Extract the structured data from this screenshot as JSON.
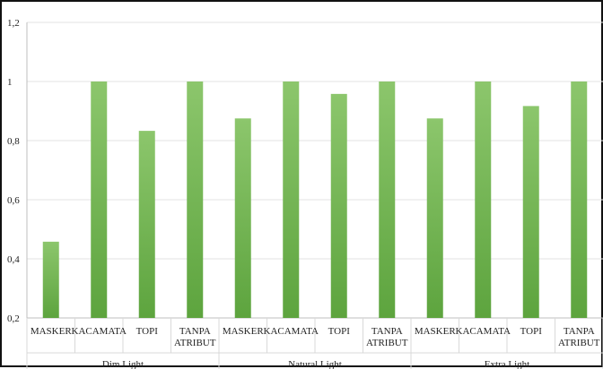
{
  "chart_data": {
    "type": "bar",
    "groups": [
      "Dim Light",
      "Natural Light",
      "Extra Light"
    ],
    "categories": [
      [
        "MASKER"
      ],
      [
        "KACAMATA"
      ],
      [
        "TOPI"
      ],
      [
        "TANPA",
        "ATRIBUT"
      ],
      [
        "MASKER"
      ],
      [
        "KACAMATA"
      ],
      [
        "TOPI"
      ],
      [
        "TANPA",
        "ATRIBUT"
      ],
      [
        "MASKER"
      ],
      [
        "KACAMATA"
      ],
      [
        "TOPI"
      ],
      [
        "TANPA",
        "ATRIBUT"
      ]
    ],
    "values": [
      0.458,
      1.0,
      0.833,
      1.0,
      0.875,
      1.0,
      0.958,
      1.0,
      0.875,
      1.0,
      0.917,
      1.0
    ],
    "ylim": [
      0.2,
      1.2
    ],
    "yticks": [
      {
        "value": 0.2,
        "label": "0,2"
      },
      {
        "value": 0.4,
        "label": "0,4"
      },
      {
        "value": 0.6,
        "label": "0,6"
      },
      {
        "value": 0.8,
        "label": "0,8"
      },
      {
        "value": 1.0,
        "label": "1"
      },
      {
        "value": 1.2,
        "label": "1,2"
      }
    ],
    "grid": true,
    "legend": "none",
    "colors": {
      "bar": "#6aad4a",
      "bar_light": "#8cc66c",
      "grid": "#e3e3e3",
      "axis": "#bfbfbf"
    }
  }
}
